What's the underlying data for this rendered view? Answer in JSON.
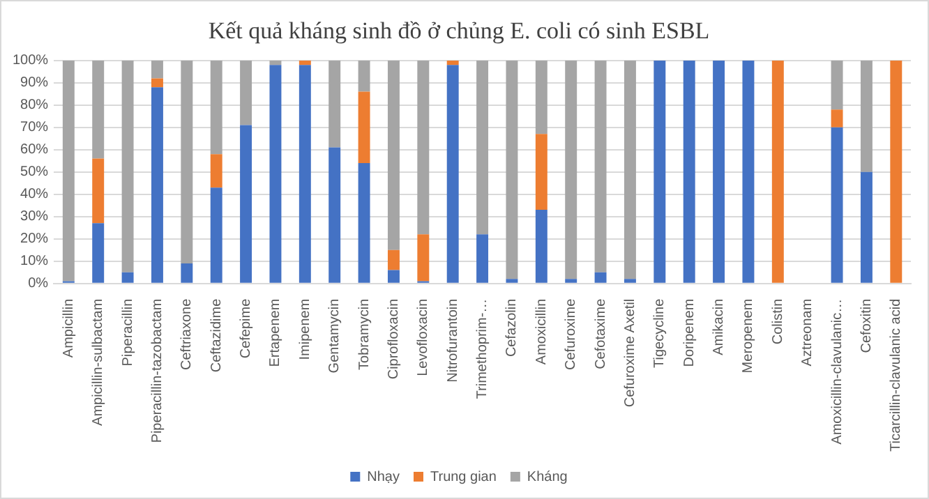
{
  "chart_data": {
    "type": "bar",
    "stacked": true,
    "title": "Kết quả kháng sinh đồ ở chủng E. coli có sinh ESBL",
    "categories": [
      "Ampicillin",
      "Ampicillin-sulbactam",
      "Piperacillin",
      "Piperacillin-tazobactam",
      "Ceftriaxone",
      "Ceftazidime",
      "Cefepime",
      "Ertapenem",
      "Imipenem",
      "Gentamycin",
      "Tobramycin",
      "Ciprofloxacin",
      "Levofloxacin",
      "Nitrofurantoin",
      "Trimethoprim-…",
      "Cefazolin",
      "Amoxicillin",
      "Cefuroxime",
      "Cefotaxime",
      "Cefuroxime Axetil",
      "Tigecycline",
      "Doripenem",
      "Amikacin",
      "Meropenem",
      "Colistin",
      "Aztreonam",
      "Amoxicillin-clavulanic…",
      "Cefoxitin",
      "Ticarcillin-clavulanic acid"
    ],
    "series": [
      {
        "name": "Nhạy",
        "color": "#4472c4",
        "values": [
          1,
          27,
          5,
          88,
          9,
          43,
          71,
          98,
          98,
          61,
          54,
          6,
          1,
          98,
          22,
          2,
          33,
          2,
          5,
          2,
          100,
          100,
          100,
          100,
          0,
          null,
          70,
          50,
          0
        ]
      },
      {
        "name": "Trung gian",
        "color": "#ed7d31",
        "values": [
          0,
          29,
          0,
          4,
          0,
          15,
          0,
          0,
          2,
          0,
          32,
          9,
          21,
          2,
          0,
          0,
          34,
          0,
          0,
          0,
          0,
          0,
          0,
          0,
          100,
          null,
          8,
          0,
          100
        ]
      },
      {
        "name": "Kháng",
        "color": "#a5a5a5",
        "values": [
          99,
          44,
          95,
          8,
          91,
          42,
          29,
          2,
          0,
          39,
          14,
          85,
          78,
          0,
          78,
          98,
          33,
          98,
          95,
          98,
          0,
          0,
          0,
          0,
          0,
          null,
          22,
          50,
          0
        ]
      }
    ],
    "ylim": [
      0,
      100
    ],
    "yticks": [
      {
        "value": 0,
        "label": "0%"
      },
      {
        "value": 10,
        "label": "10%"
      },
      {
        "value": 20,
        "label": "20%"
      },
      {
        "value": 30,
        "label": "30%"
      },
      {
        "value": 40,
        "label": "40%"
      },
      {
        "value": 50,
        "label": "50%"
      },
      {
        "value": 60,
        "label": "60%"
      },
      {
        "value": 70,
        "label": "70%"
      },
      {
        "value": 80,
        "label": "80%"
      },
      {
        "value": 90,
        "label": "90%"
      },
      {
        "value": 100,
        "label": "100%"
      }
    ],
    "grid": "y",
    "legend": "bottom"
  }
}
